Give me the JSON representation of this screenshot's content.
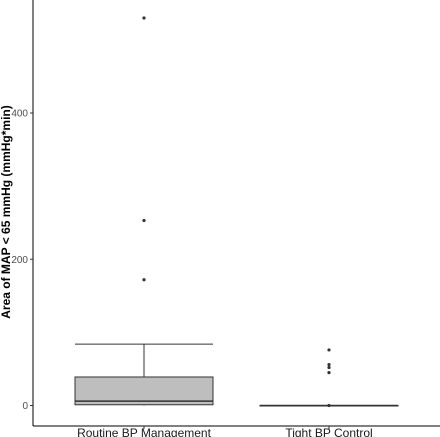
{
  "chart_data": {
    "type": "boxplot",
    "title": "",
    "xlabel": "",
    "ylabel": "Area of MAP < 65 mmHg (mmHg*min)",
    "ylim": [
      -25,
      560
    ],
    "y_ticks": [
      0,
      200,
      400
    ],
    "grid": false,
    "legend": "none",
    "box_fill": "#bebebe",
    "line_color": "#333333",
    "categories": [
      "Routine BP Management",
      "Tight BP Control"
    ],
    "boxes": [
      {
        "category": "Routine BP Management",
        "whisker_low": 0,
        "q1": 1,
        "median": 6,
        "q3": 39,
        "whisker_high": 84,
        "outliers": [
          172,
          253,
          530
        ]
      },
      {
        "category": "Tight BP Control",
        "whisker_low": 0,
        "q1": 0,
        "median": 0,
        "q3": 0,
        "whisker_high": 0,
        "outliers": [
          0,
          45,
          52,
          56,
          76
        ]
      }
    ]
  }
}
